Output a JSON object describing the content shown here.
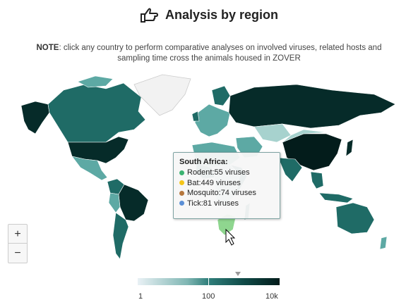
{
  "header": {
    "title": "Analysis by region",
    "icon": "hand-pointing-icon"
  },
  "note": {
    "bold": "NOTE",
    "text": ": click any country to perform comparative analyses on involved viruses, related hosts and sampling time cross the animals housed in ZOVER"
  },
  "zoom": {
    "in_label": "+",
    "out_label": "−"
  },
  "tooltip": {
    "title": "South Africa:",
    "rows": [
      {
        "label": "Rodent:55 viruses",
        "color": "#3cb371"
      },
      {
        "label": "Bat:449 viruses",
        "color": "#f5c518"
      },
      {
        "label": "Mosquito:74 viruses",
        "color": "#b5763c"
      },
      {
        "label": "Tick:81 viruses",
        "color": "#5b8fd6"
      }
    ]
  },
  "legend": {
    "min": "1",
    "mid": "100",
    "max": "10k"
  },
  "colors": {
    "dark": "#062b29",
    "mid": "#1f6b66",
    "light": "#5da9a4",
    "pale": "#a7d2ce",
    "highlight": "#8fd68f",
    "nodata": "#f2f2f2"
  }
}
